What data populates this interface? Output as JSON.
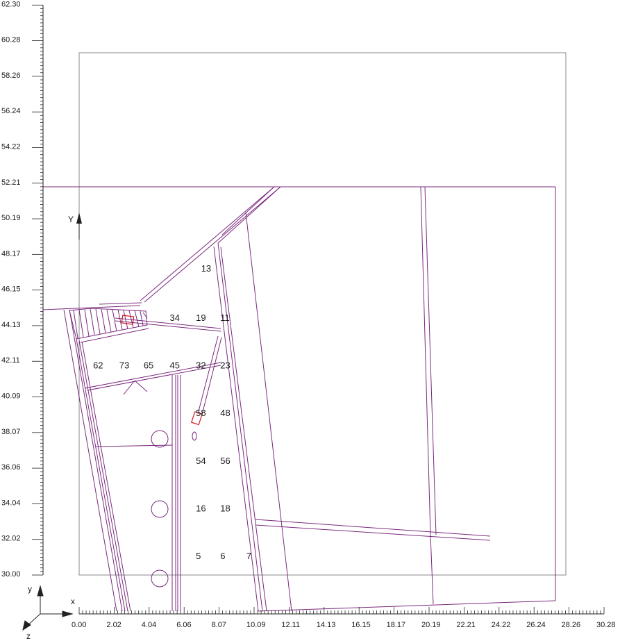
{
  "axes": {
    "x_ticks": [
      "0.00",
      "2.02",
      "4.04",
      "6.06",
      "8.07",
      "10.09",
      "12.11",
      "14.13",
      "16.15",
      "18.17",
      "20.19",
      "22.21",
      "24.22",
      "26.24",
      "28.26",
      "30.28"
    ],
    "y_ticks": [
      "62.30",
      "60.28",
      "58.26",
      "56.24",
      "54.22",
      "52.21",
      "50.19",
      "48.17",
      "46.15",
      "44.13",
      "42.11",
      "40.09",
      "38.07",
      "36.06",
      "34.04",
      "32.02",
      "30.00"
    ],
    "x_range": [
      0.0,
      30.28
    ],
    "y_range": [
      30.0,
      62.3
    ],
    "model_y_label": "Y",
    "triad": {
      "x": "x",
      "y": "y",
      "z": "z"
    }
  },
  "colors": {
    "drawing": "#7a2a7e",
    "frame": "#8a8a8a",
    "highlight": "#d01818",
    "axis": "#222222"
  },
  "region_labels": [
    {
      "id": "13",
      "x": 7.0,
      "y": 47.4
    },
    {
      "id": "34",
      "x": 5.2,
      "y": 44.6
    },
    {
      "id": "19",
      "x": 6.7,
      "y": 44.6
    },
    {
      "id": "11",
      "x": 8.1,
      "y": 44.6
    },
    {
      "id": "62",
      "x": 0.8,
      "y": 41.9
    },
    {
      "id": "73",
      "x": 2.3,
      "y": 41.9
    },
    {
      "id": "65",
      "x": 3.7,
      "y": 41.9
    },
    {
      "id": "45",
      "x": 5.2,
      "y": 41.9
    },
    {
      "id": "32",
      "x": 6.7,
      "y": 41.9
    },
    {
      "id": "23",
      "x": 8.1,
      "y": 41.9
    },
    {
      "id": "58",
      "x": 6.7,
      "y": 39.2
    },
    {
      "id": "48",
      "x": 8.1,
      "y": 39.2
    },
    {
      "id": "54",
      "x": 6.7,
      "y": 36.5
    },
    {
      "id": "56",
      "x": 8.1,
      "y": 36.5
    },
    {
      "id": "16",
      "x": 6.7,
      "y": 33.8
    },
    {
      "id": "18",
      "x": 8.1,
      "y": 33.8
    },
    {
      "id": "5",
      "x": 6.7,
      "y": 31.1
    },
    {
      "id": "6",
      "x": 8.1,
      "y": 31.1
    },
    {
      "id": "7",
      "x": 9.6,
      "y": 31.1
    }
  ]
}
